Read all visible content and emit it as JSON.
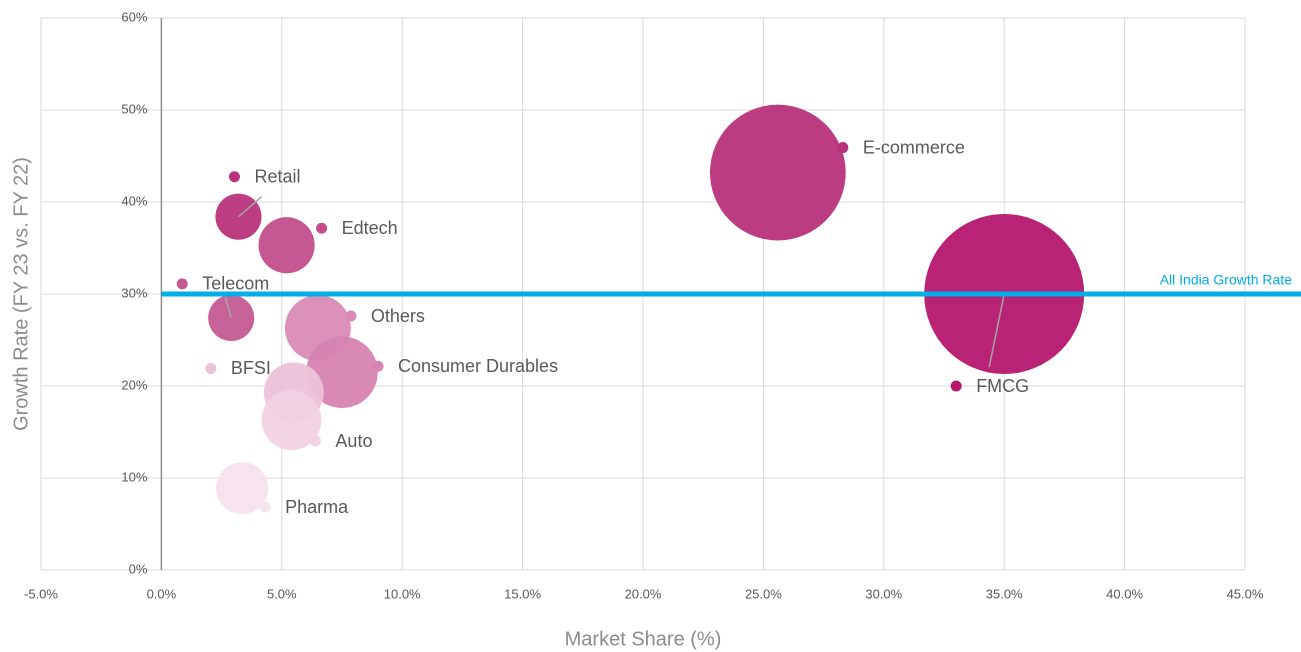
{
  "chart_data": {
    "type": "bubble",
    "x_label": "Market Share (%)",
    "y_label": "Growth Rate (FY 23 vs. FY 22)",
    "categories": [
      "E-commerce",
      "FMCG",
      "Retail",
      "Edtech",
      "Telecom",
      "Others",
      "Consumer Durables",
      "BFSI",
      "Auto",
      "Pharma"
    ],
    "x": [
      25.6,
      35.0,
      3.2,
      5.2,
      2.9,
      6.5,
      7.5,
      5.5,
      5.4,
      3.35
    ],
    "values": [
      43.2,
      30,
      38.4,
      35.3,
      27.4,
      26.3,
      21.5,
      19.3,
      16.3,
      8.9
    ],
    "sizes": [
      72,
      100,
      8.3,
      12.3,
      8.3,
      17,
      20,
      14,
      14,
      10.6
    ],
    "colors": [
      "#b8327a",
      "#b5176e",
      "#b8337a",
      "#c24f8c",
      "#c45a92",
      "#d98bb6",
      "#d684b0",
      "#ecc2d8",
      "#f1d2e2",
      "#f6e2ec"
    ],
    "reference_line": {
      "value": 30,
      "label": "All India Growth Rate",
      "color": "#00aee8"
    },
    "xlim": [
      -5,
      45
    ],
    "xticks": [
      {
        "value": -5,
        "label": "-5.0%"
      },
      {
        "value": 0,
        "label": "0.0%"
      },
      {
        "value": 5,
        "label": "5.0%"
      },
      {
        "value": 10,
        "label": "10.0%"
      },
      {
        "value": 15,
        "label": "15.0%"
      },
      {
        "value": 20,
        "label": "20.0%"
      },
      {
        "value": 25,
        "label": "25.0%"
      },
      {
        "value": 30,
        "label": "30.0%"
      },
      {
        "value": 35,
        "label": "35.0%"
      },
      {
        "value": 40,
        "label": "40.0%"
      },
      {
        "value": 45,
        "label": "45.0%"
      }
    ],
    "ylim": [
      0,
      60
    ],
    "yticks": [
      {
        "value": 0,
        "label": "0%"
      },
      {
        "value": 10,
        "label": "10%"
      },
      {
        "value": 20,
        "label": "20%"
      },
      {
        "value": 30,
        "label": "30%"
      },
      {
        "value": 40,
        "label": "40%"
      },
      {
        "value": 50,
        "label": "50%"
      },
      {
        "value": 60,
        "label": "60%"
      }
    ],
    "grid": true
  }
}
